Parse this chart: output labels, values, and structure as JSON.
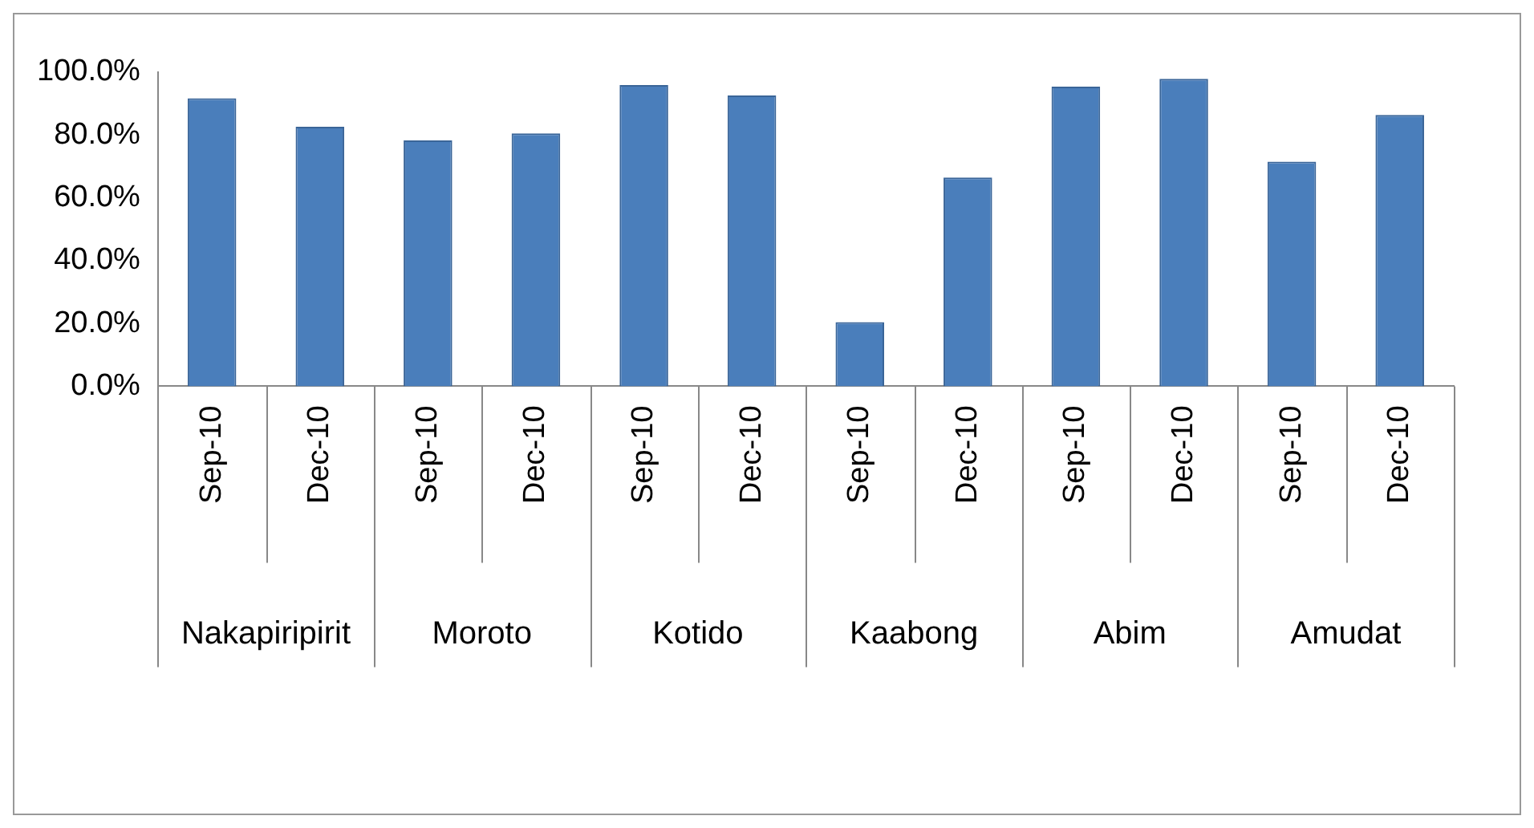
{
  "chart_data": {
    "type": "bar",
    "categories": [
      "Sep-10",
      "Dec-10",
      "Sep-10",
      "Dec-10",
      "Sep-10",
      "Dec-10",
      "Sep-10",
      "Dec-10",
      "Sep-10",
      "Dec-10",
      "Sep-10",
      "Dec-10"
    ],
    "values": [
      91.7,
      82.6,
      78.3,
      80.5,
      95.9,
      92.6,
      20.4,
      66.5,
      95.4,
      97.9,
      71.5,
      86.4
    ],
    "color": "#4a7ebb",
    "ylim": [
      0,
      100
    ],
    "yticks": [
      {
        "value": 0,
        "label": "0.0%"
      },
      {
        "value": 20,
        "label": "20.0%"
      },
      {
        "value": 40,
        "label": "40.0%"
      },
      {
        "value": 60,
        "label": "60.0%"
      },
      {
        "value": 80,
        "label": "80.0%"
      },
      {
        "value": 100,
        "label": "100.0%"
      }
    ],
    "annotations": [
      "Nakapiripirit",
      "Moroto",
      "Kotido",
      "Kaabong",
      "Abim",
      "Amudat"
    ],
    "grid": false,
    "legend": false
  }
}
